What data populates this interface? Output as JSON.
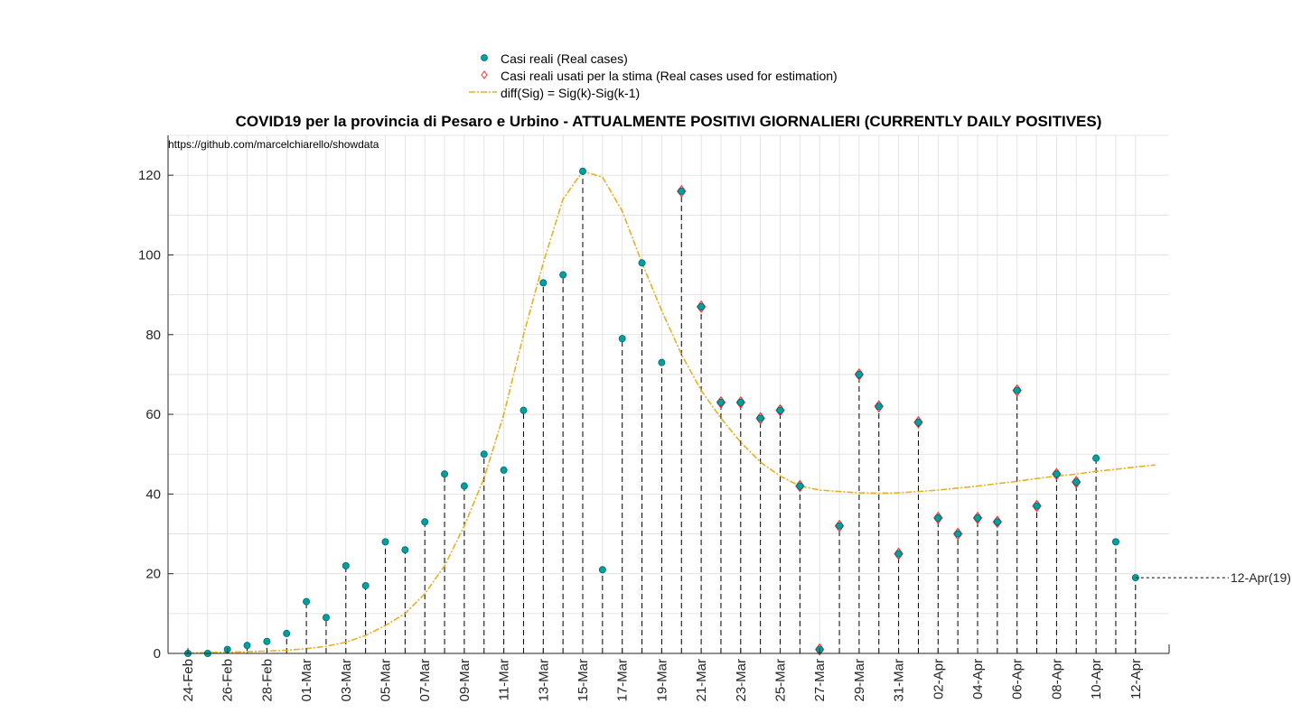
{
  "chart_data": {
    "type": "scatter",
    "title": "COVID19 per la provincia di Pesaro e Urbino - ATTUALMENTE POSITIVI GIORNALIERI (CURRENTLY DAILY POSITIVES)",
    "source_text": "https://github.com/marcelchiarello/showdata",
    "ylim": [
      0,
      130
    ],
    "yticks": [
      0,
      20,
      40,
      60,
      80,
      100,
      120
    ],
    "grid": true,
    "legend_position": "top-center",
    "colors": {
      "real": "#00a0a0",
      "used": "#ff3333",
      "fit": "#e6b020"
    },
    "x_dates": [
      "24-Feb",
      "25-Feb",
      "26-Feb",
      "27-Feb",
      "28-Feb",
      "29-Feb",
      "01-Mar",
      "02-Mar",
      "03-Mar",
      "04-Mar",
      "05-Mar",
      "06-Mar",
      "07-Mar",
      "08-Mar",
      "09-Mar",
      "10-Mar",
      "11-Mar",
      "12-Mar",
      "13-Mar",
      "14-Mar",
      "15-Mar",
      "16-Mar",
      "17-Mar",
      "18-Mar",
      "19-Mar",
      "20-Mar",
      "21-Mar",
      "22-Mar",
      "23-Mar",
      "24-Mar",
      "25-Mar",
      "26-Mar",
      "27-Mar",
      "28-Mar",
      "29-Mar",
      "30-Mar",
      "31-Mar",
      "01-Apr",
      "02-Apr",
      "03-Apr",
      "04-Apr",
      "05-Apr",
      "06-Apr",
      "07-Apr",
      "08-Apr",
      "09-Apr",
      "10-Apr",
      "11-Apr",
      "12-Apr"
    ],
    "x_tick_labels": [
      "24-Feb",
      "26-Feb",
      "28-Feb",
      "01-Mar",
      "03-Mar",
      "05-Mar",
      "07-Mar",
      "09-Mar",
      "11-Mar",
      "13-Mar",
      "15-Mar",
      "17-Mar",
      "19-Mar",
      "21-Mar",
      "23-Mar",
      "25-Mar",
      "27-Mar",
      "29-Mar",
      "31-Mar",
      "02-Apr",
      "04-Apr",
      "06-Apr",
      "08-Apr",
      "10-Apr",
      "12-Apr"
    ],
    "series": [
      {
        "name": "Casi reali (Real cases)",
        "values": [
          0,
          0,
          1,
          2,
          3,
          5,
          13,
          9,
          22,
          17,
          28,
          26,
          33,
          45,
          42,
          50,
          46,
          61,
          93,
          95,
          121,
          21,
          79,
          98,
          73,
          116,
          87,
          63,
          63,
          59,
          61,
          42,
          1,
          32,
          70,
          62,
          25,
          58,
          34,
          30,
          34,
          33,
          66,
          37,
          45,
          43,
          49,
          28,
          19
        ]
      },
      {
        "name": "Casi reali usati per la stima (Real cases used for estimation)",
        "x": [
          "20-Mar",
          "21-Mar",
          "22-Mar",
          "23-Mar",
          "24-Mar",
          "25-Mar",
          "26-Mar",
          "27-Mar",
          "28-Mar",
          "29-Mar",
          "30-Mar",
          "31-Mar",
          "01-Apr",
          "02-Apr",
          "03-Apr",
          "04-Apr",
          "05-Apr",
          "06-Apr",
          "07-Apr",
          "08-Apr",
          "09-Apr"
        ],
        "values": [
          116,
          87,
          63,
          63,
          59,
          61,
          42,
          1,
          32,
          70,
          62,
          25,
          58,
          34,
          30,
          34,
          33,
          66,
          37,
          45,
          43
        ]
      },
      {
        "name": "diff(Sig) = Sig(k)-Sig(k-1)",
        "x_index": [
          0,
          1,
          2,
          3,
          4,
          5,
          6,
          7,
          8,
          9,
          10,
          11,
          12,
          13,
          14,
          15,
          16,
          17,
          18,
          19,
          20,
          21,
          22,
          23,
          24,
          25,
          26,
          27,
          28,
          29,
          30,
          31,
          32,
          33,
          34,
          35,
          36,
          37,
          38,
          39,
          40,
          41,
          42,
          43,
          44,
          45,
          46,
          47,
          48,
          49
        ],
        "values": [
          0.1,
          0.2,
          0.3,
          0.4,
          0.6,
          0.8,
          1.2,
          1.8,
          2.8,
          4.5,
          7,
          10,
          15,
          22,
          32,
          44,
          60,
          80,
          98,
          114,
          121,
          119.5,
          111,
          98,
          86,
          75,
          66,
          59,
          53,
          48,
          44.5,
          42,
          41,
          40.6,
          40.3,
          40.2,
          40.3,
          40.6,
          41,
          41.5,
          42,
          42.6,
          43.2,
          43.9,
          44.5,
          45,
          45.7,
          46.2,
          46.8,
          47.3
        ]
      }
    ],
    "annotation": {
      "text": "12-Apr(19)",
      "x": "12-Apr",
      "y": 19
    }
  }
}
